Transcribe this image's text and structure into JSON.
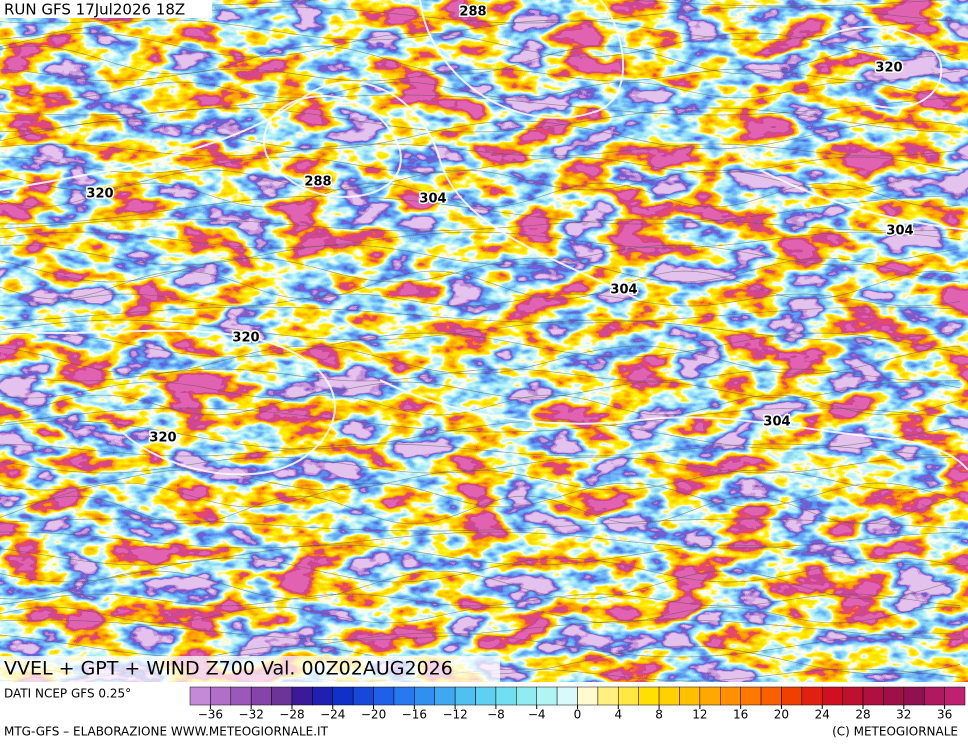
{
  "header": {
    "run": "RUN GFS 17Jul2026 18Z"
  },
  "map": {
    "contour_labels": [
      "288",
      "288",
      "320",
      "320",
      "320",
      "320",
      "304",
      "304",
      "304",
      "304"
    ]
  },
  "footer_title": "VVEL + GPT + WIND Z700 Val. 00Z02AUG2026",
  "legend": {
    "source": "DATI NCEP GFS 0.25°",
    "range": [
      -38,
      38
    ],
    "colors": [
      "#c48ad8",
      "#b070c8",
      "#9a58b8",
      "#8444a8",
      "#6c3498",
      "#3a1a98",
      "#2020b0",
      "#1030c8",
      "#1848d8",
      "#2060e8",
      "#2878f0",
      "#3090f0",
      "#40a8f0",
      "#50c0f0",
      "#60d0f0",
      "#70e0f0",
      "#90ecf0",
      "#b0f4f4",
      "#d8fafa",
      "#fffad0",
      "#fff080",
      "#ffe840",
      "#ffe000",
      "#ffd000",
      "#ffc000",
      "#ffa800",
      "#ff9000",
      "#ff7800",
      "#f86000",
      "#f04000",
      "#e02010",
      "#d01020",
      "#c01030",
      "#b01040",
      "#a01048",
      "#901050",
      "#b01860",
      "#c02070"
    ],
    "ticks": [
      {
        "value": -36,
        "label": "−36"
      },
      {
        "value": -32,
        "label": "−32"
      },
      {
        "value": -28,
        "label": "−28"
      },
      {
        "value": -24,
        "label": "−24"
      },
      {
        "value": -20,
        "label": "−20"
      },
      {
        "value": -16,
        "label": "−16"
      },
      {
        "value": -12,
        "label": "−12"
      },
      {
        "value": -8,
        "label": "−8"
      },
      {
        "value": -4,
        "label": "−4"
      },
      0,
      4,
      8,
      12,
      16,
      20,
      24,
      28,
      32,
      36
    ]
  },
  "credits": {
    "left": "MTG-GFS – ELABORAZIONE WWW.METEOGIORNALE.IT",
    "right": "(C) METEOGIORNALE"
  }
}
